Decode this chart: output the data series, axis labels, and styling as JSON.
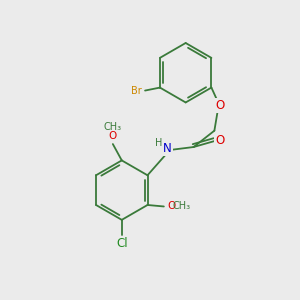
{
  "background_color": "#ebebeb",
  "bond_color": "#3a7a3a",
  "atom_colors": {
    "Br": "#cc8800",
    "O": "#dd0000",
    "N": "#0000cc",
    "Cl": "#228B22",
    "C": "#3a7a3a",
    "H": "#3a7a3a"
  },
  "font_size_atoms": 8.5,
  "font_size_small": 7.0,
  "line_width": 1.3,
  "figsize": [
    3.0,
    3.0
  ],
  "dpi": 100
}
